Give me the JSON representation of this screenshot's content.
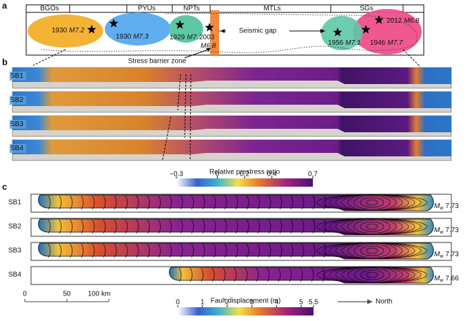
{
  "panel_a": {
    "label": "a",
    "segments": [
      "BGOs",
      "PYUs",
      "NPTs",
      "MTLs",
      "SGs"
    ],
    "earthquakes": [
      {
        "year": "1930",
        "magnitude": "M7.2"
      },
      {
        "year": "1930",
        "magnitude": "M7.3"
      },
      {
        "year": "1929",
        "magnitude": "M7."
      },
      {
        "year": "2003",
        "magnitude": "M6.8"
      },
      {
        "year": "1956",
        "magnitude": "M7.1"
      },
      {
        "year": "1946",
        "magnitude": "M7.7"
      },
      {
        "year": "2012",
        "magnitude": "M6.8"
      }
    ],
    "seismic_gap": "Seismic gap",
    "stress_barrier": "Stress barrier zone"
  },
  "panel_b": {
    "label": "b",
    "rows": [
      "SB1",
      "SB2",
      "SB3",
      "SB4"
    ],
    "colorbar": {
      "title": "Relative prestress ratio",
      "lim": [
        -0.3,
        0.7
      ],
      "ticks": [
        {
          "value": -0.3,
          "label": "−0.3"
        },
        0,
        0.2,
        0.4,
        0.7
      ]
    }
  },
  "panel_c": {
    "label": "c",
    "rows": [
      {
        "name": "SB1",
        "magnitude": 7.73
      },
      {
        "name": "SB2",
        "magnitude": 7.73
      },
      {
        "name": "SB3",
        "magnitude": 7.73
      },
      {
        "name": "SB4",
        "magnitude": 7.66
      }
    ],
    "magnitude_symbol": "M",
    "magnitude_subscript": "w",
    "scale_bar": {
      "lim": [
        0,
        100
      ],
      "ticks": [
        0,
        50,
        {
          "value": 100,
          "label": "100 km"
        }
      ]
    },
    "colorbar": {
      "title": "Fault displacement (m)",
      "lim": [
        0,
        5.5
      ],
      "ticks": [
        0,
        1,
        2,
        3,
        4,
        5,
        5.5
      ]
    },
    "north": "North"
  }
}
